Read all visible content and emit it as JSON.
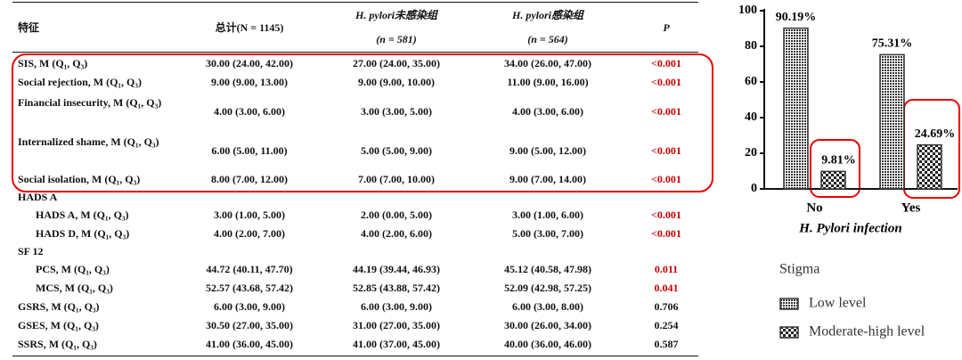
{
  "table": {
    "header": [
      {
        "text": "特征"
      },
      {
        "text": "总计(N = 1145)"
      },
      {
        "text": "H. pylori未感染组",
        "sub": "(n = 581)"
      },
      {
        "text": "H. pylori感染组",
        "sub": "(n = 564)"
      },
      {
        "text": "P"
      }
    ],
    "rows": [
      {
        "cells": [
          "SIS, M (Q₁, Q₃)",
          "30.00 (24.00, 42.00)",
          "27.00 (24.00, 35.00)",
          "34.00 (26.00, 47.00)",
          "<0.001"
        ],
        "highlight": true
      },
      {
        "cells": [
          "Social rejection, M (Q₁, Q₃)",
          "9.00 (9.00, 13.00)",
          "9.00 (9.00, 10.00)",
          "11.00 (9.00, 16.00)",
          "<0.001"
        ],
        "highlight": true
      },
      {
        "cells": [
          "Financial insecurity, M (Q₁, Q₃)",
          "4.00 (3.00, 6.00)",
          "3.00 (3.00, 5.00)",
          "4.00 (3.00, 6.00)",
          "<0.001"
        ],
        "highlight": true
      },
      {
        "cells": [
          "Internalized shame, M (Q₁, Q₃)",
          "6.00 (5.00, 11.00)",
          "5.00 (5.00, 9.00)",
          "9.00 (5.00, 12.00)",
          "<0.001"
        ],
        "highlight": true
      },
      {
        "cells": [
          "Social isolation, M (Q₁, Q₃)",
          "8.00 (7.00, 12.00)",
          "7.00 (7.00, 10.00)",
          "9.00 (7.00, 14.00)",
          "<0.001"
        ],
        "highlight": true
      },
      {
        "cells": [
          "HADS A"
        ]
      },
      {
        "cells": [
          "HADS A, M (Q₁, Q₃)",
          "3.00 (1.00, 5.00)",
          "2.00 (0.00, 5.00)",
          "3.00 (1.00, 6.00)",
          "<0.001"
        ],
        "indent": true,
        "highlight": true
      },
      {
        "cells": [
          "HADS D, M (Q₁, Q₃)",
          "4.00 (2.00, 7.00)",
          "4.00 (2.00, 6.00)",
          "5.00 (3.00, 7.00)",
          "<0.001"
        ],
        "indent": true,
        "highlight": true
      },
      {
        "cells": [
          "SF 12"
        ]
      },
      {
        "cells": [
          "PCS, M (Q₁, Q₃)",
          "44.72 (40.11, 47.70)",
          "44.19 (39.44, 46.93)",
          "45.12 (40.58, 47.98)",
          "0.011"
        ],
        "indent": true,
        "highlight": true
      },
      {
        "cells": [
          "MCS, M (Q₁, Q₃)",
          "52.57 (43.68, 57.42)",
          "52.85 (43.88, 57.42)",
          "52.09 (42.98, 57.25)",
          "0.041"
        ],
        "indent": true,
        "highlight": true
      },
      {
        "cells": [
          "GSRS, M (Q₁, Q₃)",
          "6.00 (3.00, 9.00)",
          "6.00 (3.00, 9.00)",
          "6.00 (3.00, 8.00)",
          "0.706"
        ]
      },
      {
        "cells": [
          "GSES, M (Q₁, Q₃)",
          "30.50 (27.00, 35.00)",
          "31.00 (27.00, 35.00)",
          "30.00 (26.00, 34.00)",
          "0.254"
        ]
      },
      {
        "cells": [
          "SSRS, M (Q₁, Q₃)",
          "41.00 (36.00, 45.00)",
          "41.00 (37.00, 45.00)",
          "40.00 (36.00, 46.00)",
          "0.587"
        ]
      }
    ]
  },
  "chart_data": {
    "type": "bar",
    "x_label": "H. Pylori infection",
    "legend_title": "Stigma",
    "categories": [
      "No",
      "Yes"
    ],
    "series": [
      {
        "name": "Low level",
        "color": "#333333",
        "pattern": "dense",
        "values": [
          90.19,
          75.31
        ],
        "value_labels": [
          "90.19%",
          "75.31%"
        ]
      },
      {
        "name": "Moderate-high level",
        "color": "#333333",
        "pattern": "checker",
        "values": [
          9.81,
          24.69
        ],
        "value_labels": [
          "9.81%",
          "24.69%"
        ]
      }
    ],
    "ylim": [
      0,
      100
    ],
    "yticks": [
      0,
      20,
      40,
      60,
      80,
      100
    ]
  }
}
